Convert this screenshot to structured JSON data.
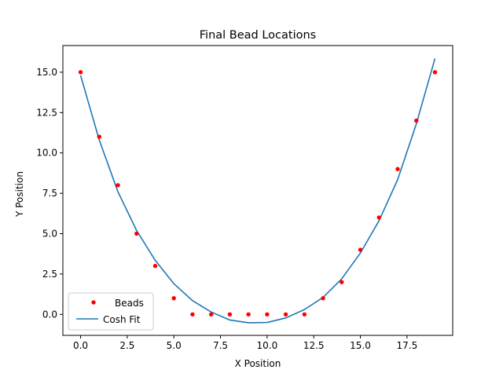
{
  "chart_data": {
    "type": "scatter",
    "title": "Final Bead Locations",
    "xlabel": "X Position",
    "ylabel": "Y Position",
    "xlim": [
      -0.95,
      19.95
    ],
    "ylim": [
      -1.3,
      16.65
    ],
    "xticks": [
      0,
      2.5,
      5,
      7.5,
      10,
      12.5,
      15,
      17.5
    ],
    "xtick_labels": [
      "0.0",
      "2.5",
      "5.0",
      "7.5",
      "10.0",
      "12.5",
      "15.0",
      "17.5"
    ],
    "yticks": [
      0,
      2.5,
      5,
      7.5,
      10,
      12.5,
      15
    ],
    "ytick_labels": [
      "0.0",
      "2.5",
      "5.0",
      "7.5",
      "10.0",
      "12.5",
      "15.0"
    ],
    "grid": false,
    "legend_placement": "lower-left",
    "series": [
      {
        "name": "Beads",
        "kind": "scatter",
        "color": "#ff0000",
        "x": [
          0,
          1,
          2,
          3,
          4,
          5,
          6,
          7,
          8,
          9,
          10,
          11,
          12,
          13,
          14,
          15,
          16,
          17,
          18,
          19
        ],
        "y": [
          15,
          11,
          8,
          5,
          3,
          1,
          0,
          0,
          0,
          0,
          0,
          0,
          0,
          1,
          2,
          4,
          6,
          9,
          12,
          15
        ]
      },
      {
        "name": "Cosh Fit",
        "kind": "line",
        "color": "#1f77b4",
        "x": [
          0,
          1,
          2,
          3,
          4,
          5,
          6,
          7,
          8,
          9,
          10,
          11,
          12,
          13,
          14,
          15,
          16,
          17,
          18,
          19
        ],
        "y": [
          14.8,
          10.8,
          7.6,
          5.2,
          3.35,
          1.9,
          0.85,
          0.15,
          -0.35,
          -0.52,
          -0.5,
          -0.22,
          0.3,
          1.05,
          2.2,
          3.8,
          5.8,
          8.35,
          11.8,
          15.85
        ]
      }
    ]
  }
}
